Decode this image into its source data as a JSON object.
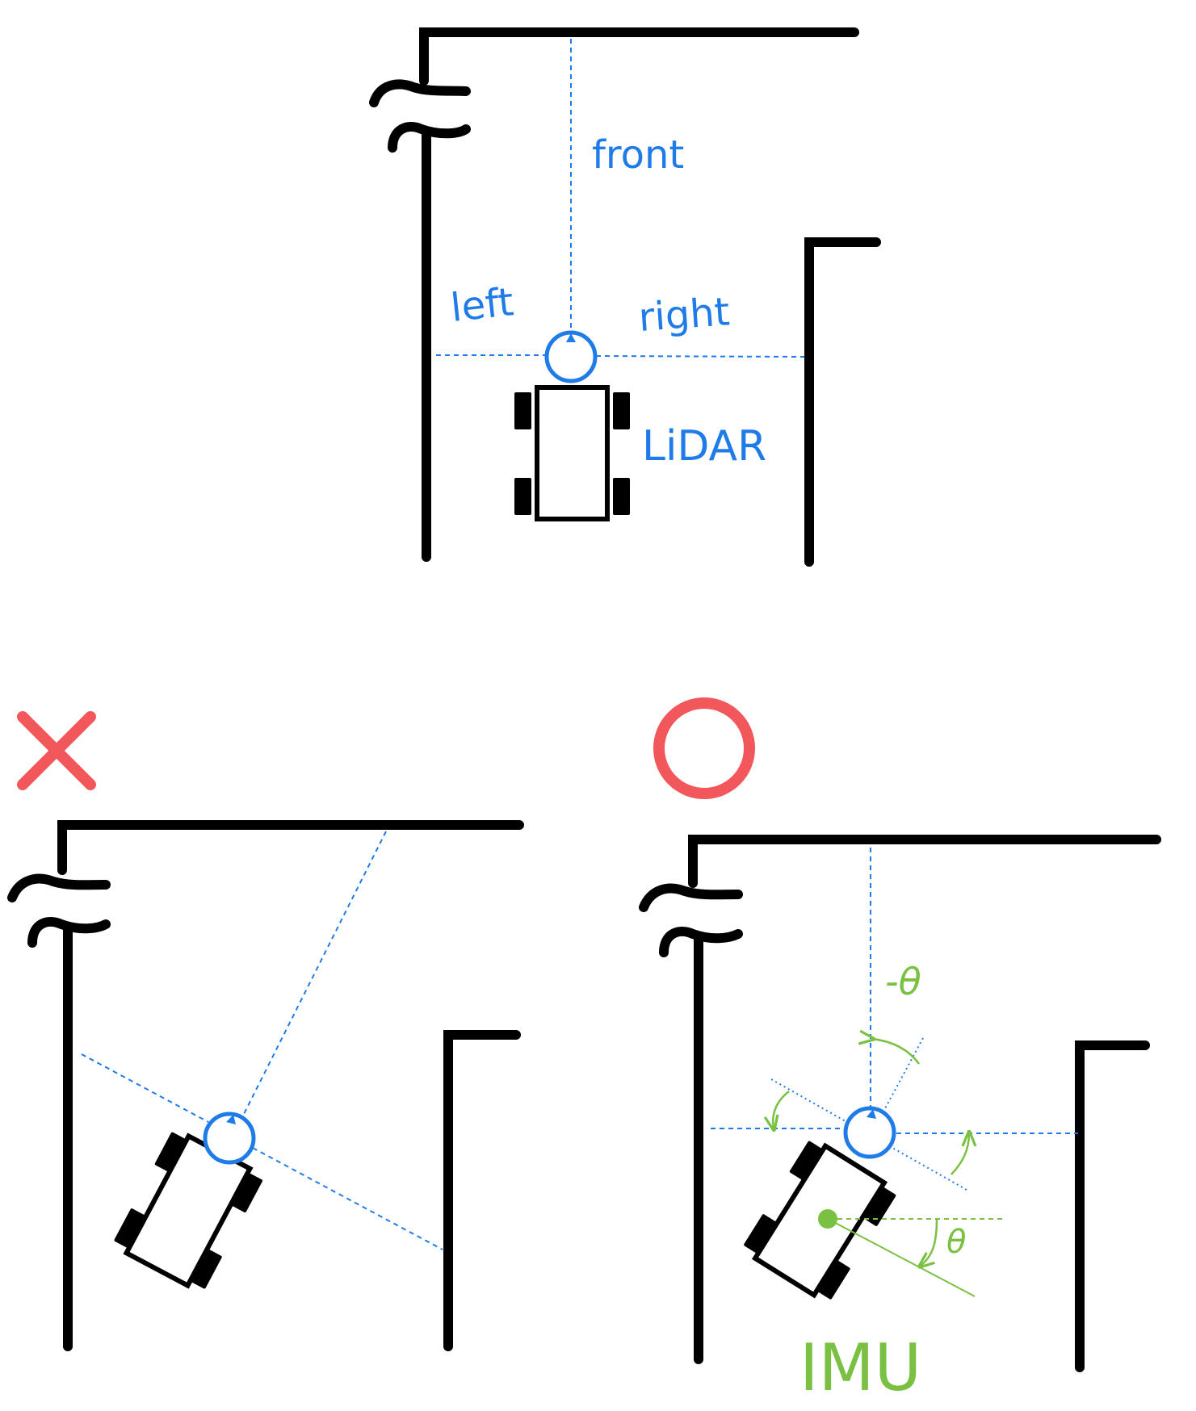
{
  "labels": {
    "front": "front",
    "left": "left",
    "right": "right",
    "lidar": "LiDAR",
    "neg_theta": "-θ",
    "theta": "θ",
    "imu": "IMU"
  },
  "colors": {
    "wall": "#000000",
    "lidar_rays": "#1f7be8",
    "imu": "#7ac143",
    "verdict": "#f2575b"
  },
  "icons": {
    "wrong": "cross-mark-icon",
    "correct": "circle-mark-icon"
  }
}
